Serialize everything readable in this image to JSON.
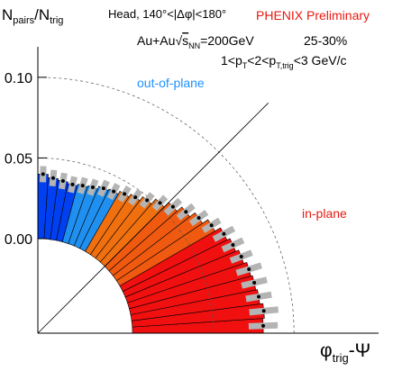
{
  "chart_data": {
    "type": "polar-bar",
    "y_label": [
      "N",
      "pairs",
      "/N",
      "trig"
    ],
    "title": "Head, 140°<|Δφ|<180°",
    "subtitle": "PHENIX Preliminary",
    "system": [
      "Au+Au",
      "s",
      "NN",
      "=200GeV"
    ],
    "centrality": "25-30%",
    "pt_range": [
      "1<p",
      "T",
      "<2<p",
      "T,trig",
      "<3 GeV/c"
    ],
    "annotations": [
      {
        "text": "out-of-plane",
        "color": "#1e90ff"
      },
      {
        "text": "in-plane",
        "color": "#e8190f"
      }
    ],
    "x_label": [
      "φ",
      "trig",
      "-Ψ"
    ],
    "ylim": [
      0,
      0.12
    ],
    "yticks": [
      {
        "value": 0,
        "label": "0.00"
      },
      {
        "value": 0.05,
        "label": "0.05"
      },
      {
        "value": 0.1,
        "label": "0.10"
      }
    ],
    "values": [
      0.081,
      0.082,
      0.08,
      0.079,
      0.078,
      0.076,
      0.074,
      0.072,
      0.068,
      0.064,
      0.06,
      0.056,
      0.052,
      0.048,
      0.045,
      0.043,
      0.041,
      0.04,
      0.038,
      0.037,
      0.036,
      0.037,
      0.038,
      0.04
    ],
    "errors": [
      0.009,
      0.009,
      0.008,
      0.008,
      0.008,
      0.007,
      0.007,
      0.007,
      0.006,
      0.006,
      0.006,
      0.006,
      0.005,
      0.005,
      0.005,
      0.005,
      0.005,
      0.005,
      0.005,
      0.005,
      0.005,
      0.005,
      0.005,
      0.005
    ],
    "colors": [
      "#f01010",
      "#f01010",
      "#f01010",
      "#f01010",
      "#f01010",
      "#f01010",
      "#f01010",
      "#f01010",
      "#f05a10",
      "#f05a10",
      "#f05a10",
      "#f05a10",
      "#f07010",
      "#f07010",
      "#f07010",
      "#f07010",
      "#2090f0",
      "#2090f0",
      "#2090f0",
      "#2090f0",
      "#0040f0",
      "#0040f0",
      "#0040f0",
      "#0040f0"
    ],
    "error_color": "#b4b4b4"
  }
}
